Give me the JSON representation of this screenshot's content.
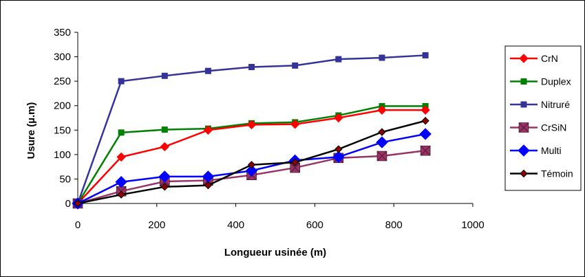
{
  "chart_data": {
    "type": "line",
    "title": "",
    "xlabel": "Longueur usinée (m)",
    "ylabel": "Usure (µ.m)",
    "xlim": [
      0,
      1000
    ],
    "ylim": [
      0,
      350
    ],
    "xticks": [
      0,
      200,
      400,
      600,
      800,
      1000
    ],
    "yticks": [
      0,
      50,
      100,
      150,
      200,
      250,
      300,
      350
    ],
    "grid": false,
    "legend_position": "right",
    "x": [
      0,
      110,
      220,
      330,
      440,
      550,
      660,
      770,
      880
    ],
    "series": [
      {
        "name": "CrN",
        "color": "#ff0000",
        "marker": "diamond",
        "values": [
          0,
          95,
          116,
          150,
          161,
          162,
          175,
          191,
          191
        ]
      },
      {
        "name": "Duplex",
        "color": "#008000",
        "marker": "square",
        "values": [
          0,
          145,
          151,
          153,
          164,
          166,
          180,
          199,
          199
        ]
      },
      {
        "name": "Nitruré",
        "color": "#333399",
        "marker": "square",
        "values": [
          0,
          250,
          261,
          271,
          279,
          282,
          295,
          298,
          303
        ]
      },
      {
        "name": "CrSiN",
        "color": "#993366",
        "marker": "square-x",
        "values": [
          0,
          25,
          45,
          47,
          58,
          73,
          93,
          97,
          108
        ]
      },
      {
        "name": "Multi",
        "color": "#0000ff",
        "marker": "diamond-large",
        "values": [
          0,
          44,
          55,
          55,
          67,
          88,
          95,
          125,
          142
        ]
      },
      {
        "name": "Témoin",
        "color": "#000000",
        "marker": "diamond-small",
        "values": [
          0,
          18,
          34,
          37,
          79,
          84,
          111,
          146,
          169
        ]
      }
    ]
  }
}
